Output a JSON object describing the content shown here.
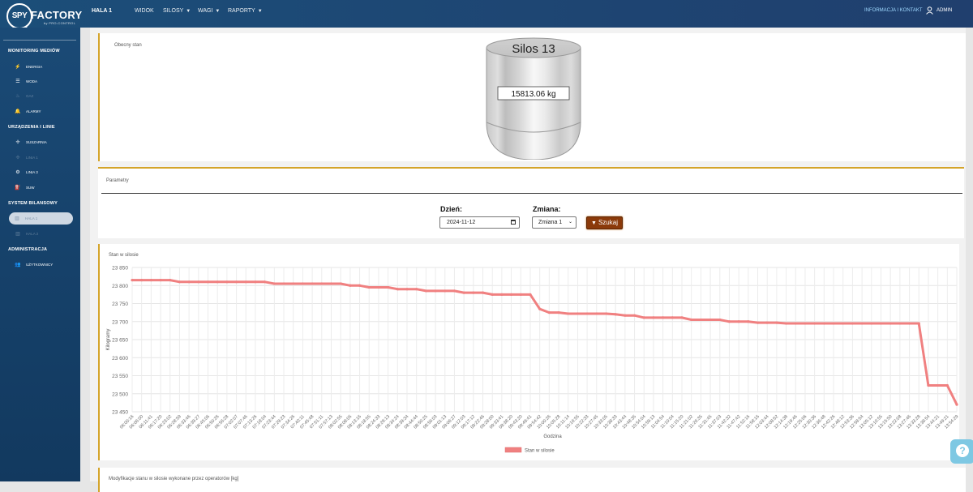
{
  "app": {
    "logo_spy": "SPY",
    "logo_factory": "FACTORY",
    "logo_sub": "by PRO-CONTROL",
    "hall": "HALA 1",
    "menu": [
      {
        "label": "WIDOK",
        "has_caret": false
      },
      {
        "label": "SILOSY",
        "has_caret": true
      },
      {
        "label": "WAGI",
        "has_caret": true
      },
      {
        "label": "RAPORTY",
        "has_caret": true
      }
    ],
    "info_link": "INFORMACJA I KONTAKT",
    "user": "ADMIN",
    "accent": "#d4a42a"
  },
  "sidebar": {
    "sections": [
      {
        "title": "MONITORING MEDIÓW",
        "items": [
          {
            "label": "ENERGIA",
            "icon": "bolt-icon",
            "dim": false
          },
          {
            "label": "WODA",
            "icon": "bars-icon",
            "dim": false
          },
          {
            "label": "GAZ",
            "icon": "flame-icon",
            "dim": true
          },
          {
            "label": "ALARMY",
            "icon": "bell-icon",
            "dim": false
          }
        ]
      },
      {
        "title": "URZĄDZENIA I LINIE",
        "items": [
          {
            "label": "SUSZARNIA",
            "icon": "fan-icon",
            "dim": false
          },
          {
            "label": "LINIA 1",
            "icon": "fan-icon",
            "dim": true
          },
          {
            "label": "LINIA 3",
            "icon": "machine-icon",
            "dim": false
          },
          {
            "label": "SUW",
            "icon": "pump-icon",
            "dim": false
          }
        ]
      },
      {
        "title": "SYSTEM BILANSOWY",
        "items": [
          {
            "label": "HALA 1",
            "icon": "building-icon",
            "dim": false,
            "active": true
          },
          {
            "label": "HALA 2",
            "icon": "building-icon",
            "dim": true
          }
        ]
      },
      {
        "title": "ADMINISTRACJA",
        "items": [
          {
            "label": "UŻYTKOWNICY",
            "icon": "users-icon",
            "dim": false
          }
        ]
      }
    ]
  },
  "silo_panel": {
    "title": "Obecny stan",
    "silo_name": "Silos 13",
    "value": "15813.06 kg"
  },
  "params_panel": {
    "title": "Parametry",
    "day_label": "Dzień:",
    "date_value": "2024-11-12",
    "shift_label": "Zmiana:",
    "shift_value": "Zmiana 1",
    "search_button": "Szukaj"
  },
  "chart_panel": {
    "title": "Stan w silosie"
  },
  "chart_data": {
    "type": "line",
    "series_name": "Stan w silosie",
    "xlabel": "Godzina",
    "ylabel": "Kilogramy",
    "ylim": [
      23450,
      23850
    ],
    "yticks": [
      23450,
      23500,
      23550,
      23600,
      23650,
      23700,
      23750,
      23800,
      23850
    ],
    "ytick_labels": [
      "23 450",
      "23 500",
      "23 550",
      "23 600",
      "23 650",
      "23 700",
      "23 750",
      "23 800",
      "23 850"
    ],
    "grid": true,
    "legend": "bottom",
    "color": "#f08080",
    "x": [
      "06:00:16",
      "06:06:00",
      "06:11:41",
      "06:17:20",
      "06:23:02",
      "06:28:59",
      "06:33:46",
      "06:39:27",
      "06:45:06",
      "06:50:26",
      "06:56:28",
      "07:02:07",
      "07:07:46",
      "07:13:26",
      "07:18:04",
      "07:23:44",
      "07:29:23",
      "07:34:26",
      "07:40:11",
      "07:45:48",
      "07:51:11",
      "07:57:13",
      "08:02:55",
      "08:08:05",
      "08:13:16",
      "08:18:55",
      "08:24:33",
      "08:29:13",
      "08:34:24",
      "08:39:34",
      "08:44:44",
      "08:50:25",
      "08:56:03",
      "09:01:13",
      "09:06:27",
      "09:12:03",
      "09:17:12",
      "09:22:46",
      "09:28:00",
      "09:33:41",
      "09:38:20",
      "09:43:20",
      "09:49:41",
      "09:54:42",
      "10:00:26",
      "10:05:28",
      "10:11:14",
      "10:16:55",
      "10:22:33",
      "10:27:45",
      "10:33:05",
      "10:38:33",
      "10:43:44",
      "10:48:35",
      "10:54:04",
      "10:59:13",
      "11:04:54",
      "11:10:04",
      "11:15:20",
      "11:21:02",
      "11:26:35",
      "11:31:45",
      "11:37:03",
      "11:42:32",
      "11:47:42",
      "11:52:16",
      "11:58:16",
      "12:03:44",
      "12:08:52",
      "12:14:38",
      "12:19:46",
      "12:25:06",
      "12:30:36",
      "12:36:48",
      "12:42:26",
      "12:48:12",
      "12:53:36",
      "12:58:54",
      "13:05:12",
      "13:10:55",
      "13:15:50",
      "13:22:08",
      "13:27:46",
      "13:33:28",
      "13:38:54",
      "13:44:21",
      "13:49:21",
      "13:54:29"
    ],
    "values": [
      23815,
      23815,
      23815,
      23815,
      23815,
      23810,
      23810,
      23810,
      23810,
      23810,
      23810,
      23810,
      23810,
      23810,
      23810,
      23805,
      23805,
      23805,
      23805,
      23805,
      23805,
      23805,
      23805,
      23800,
      23800,
      23795,
      23795,
      23795,
      23790,
      23790,
      23790,
      23785,
      23785,
      23785,
      23785,
      23780,
      23780,
      23780,
      23775,
      23775,
      23775,
      23775,
      23775,
      23735,
      23725,
      23725,
      23722,
      23722,
      23722,
      23722,
      23722,
      23720,
      23717,
      23717,
      23711,
      23711,
      23711,
      23711,
      23711,
      23705,
      23705,
      23705,
      23705,
      23700,
      23700,
      23700,
      23697,
      23697,
      23697,
      23695,
      23695,
      23695,
      23695,
      23695,
      23695,
      23695,
      23695,
      23695,
      23695,
      23695,
      23695,
      23695,
      23695,
      23695,
      23523,
      23523,
      23523,
      23470
    ]
  },
  "ops_panel": {
    "title": "Modyfikacje stanu w silosie wykonane przez operatorów [kg]"
  }
}
